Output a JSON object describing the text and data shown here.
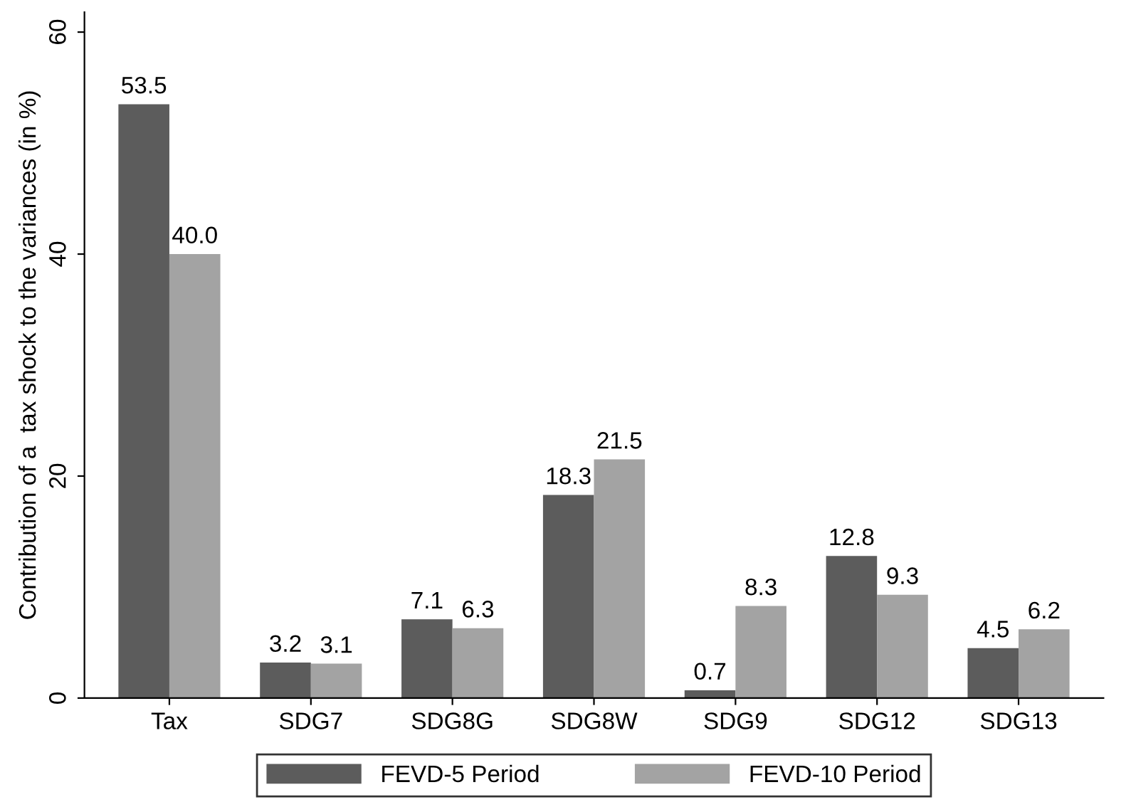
{
  "chart_data": {
    "type": "bar",
    "ylabel": "Contribution of a  tax shock to the variances (in %)",
    "categories": [
      "Tax",
      "SDG7",
      "SDG8G",
      "SDG8W",
      "SDG9",
      "SDG12",
      "SDG13"
    ],
    "series": [
      {
        "name": "FEVD-5 Period",
        "color": "#5c5c5c",
        "values": [
          53.5,
          3.2,
          7.1,
          18.3,
          0.7,
          12.8,
          4.5
        ]
      },
      {
        "name": "FEVD-10 Period",
        "color": "#a3a3a3",
        "values": [
          40.0,
          3.1,
          6.3,
          21.5,
          8.3,
          9.3,
          6.2
        ]
      }
    ],
    "value_labels": [
      [
        "53.5",
        "3.2",
        "7.1",
        "18.3",
        "0.7",
        "12.8",
        "4.5"
      ],
      [
        "40.0",
        "3.1",
        "6.3",
        "21.5",
        "8.3",
        "9.3",
        "6.2"
      ]
    ],
    "ylim": [
      0,
      61.8
    ],
    "yticks": [
      0,
      20,
      40,
      60
    ],
    "grid": false,
    "legend": "bottom"
  }
}
